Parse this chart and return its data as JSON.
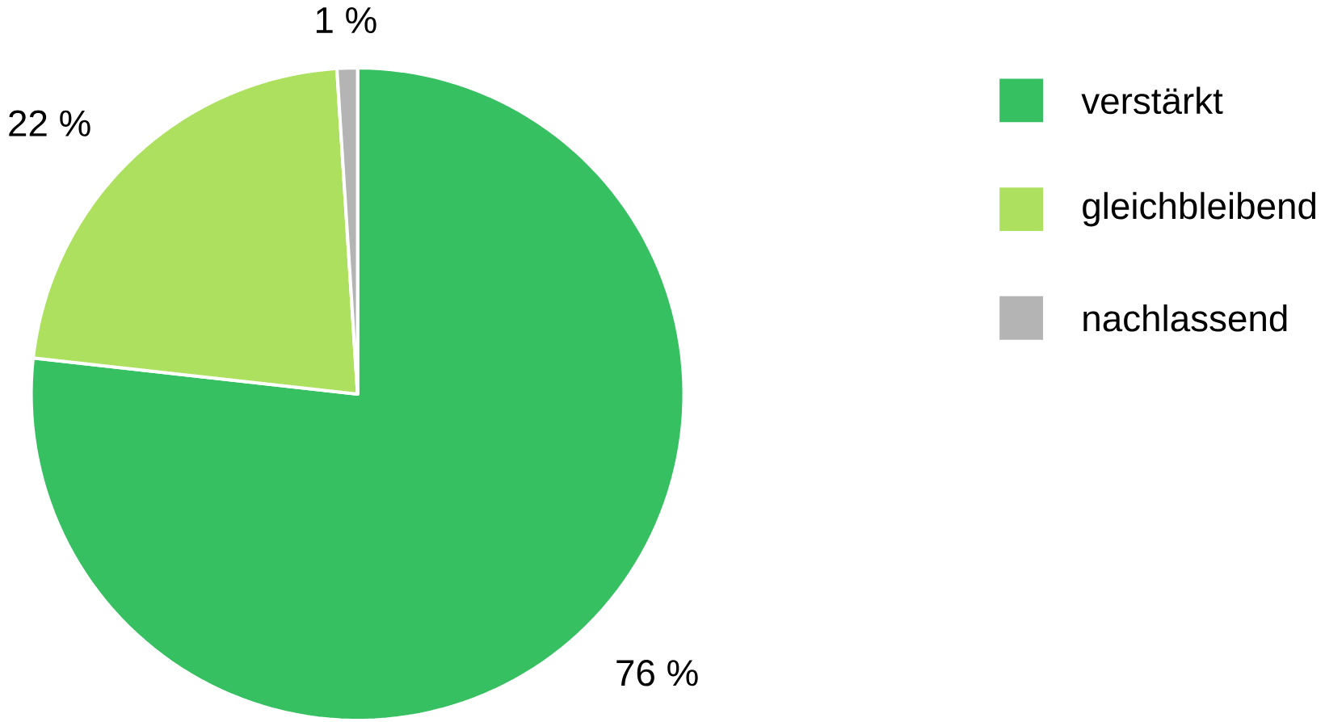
{
  "chart_data": {
    "type": "pie",
    "categories": [
      "verstärkt",
      "gleichbleibend",
      "nachlassend"
    ],
    "values": [
      76,
      22,
      1
    ],
    "colors": [
      "#37c062",
      "#aee05f",
      "#b4b4b4"
    ],
    "value_labels": [
      "76 %",
      "22 %",
      "1 %"
    ],
    "legend": "right"
  }
}
